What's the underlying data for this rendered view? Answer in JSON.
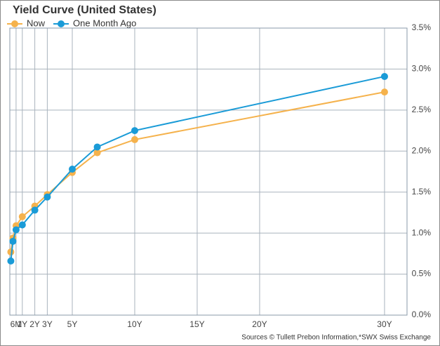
{
  "chart_data": {
    "type": "line",
    "title": "Yield Curve (United States)",
    "x": [
      0.08,
      0.25,
      0.5,
      1,
      2,
      3,
      5,
      7,
      10,
      30
    ],
    "series": [
      {
        "name": "Now",
        "color": "#f5b24c",
        "values": [
          0.77,
          0.94,
          1.09,
          1.2,
          1.33,
          1.47,
          1.74,
          1.98,
          2.14,
          2.72
        ]
      },
      {
        "name": "One Month Ago",
        "color": "#1a9bd7",
        "values": [
          0.66,
          0.9,
          1.04,
          1.1,
          1.28,
          1.44,
          1.78,
          2.05,
          2.25,
          2.91
        ]
      }
    ],
    "xlim": [
      0,
      31.8
    ],
    "xticks": [
      {
        "value": 0.5,
        "label": "6M"
      },
      {
        "value": 1,
        "label": "1Y"
      },
      {
        "value": 2,
        "label": "2Y"
      },
      {
        "value": 3,
        "label": "3Y"
      },
      {
        "value": 5,
        "label": "5Y"
      },
      {
        "value": 10,
        "label": "10Y"
      },
      {
        "value": 15,
        "label": "15Y"
      },
      {
        "value": 20,
        "label": "20Y"
      },
      {
        "value": 30,
        "label": "30Y"
      }
    ],
    "ylim": [
      0,
      3.5
    ],
    "yticks": [
      {
        "value": 0,
        "label": "0.0%"
      },
      {
        "value": 0.5,
        "label": "0.5%"
      },
      {
        "value": 1,
        "label": "1.0%"
      },
      {
        "value": 1.5,
        "label": "1.5%"
      },
      {
        "value": 2,
        "label": "2.0%"
      },
      {
        "value": 2.5,
        "label": "2.5%"
      },
      {
        "value": 3,
        "label": "3.0%"
      },
      {
        "value": 3.5,
        "label": "3.5%"
      }
    ],
    "grid": true,
    "source": "Sources  © Tullett Prebon Information,*SWX Swiss Exchange"
  }
}
